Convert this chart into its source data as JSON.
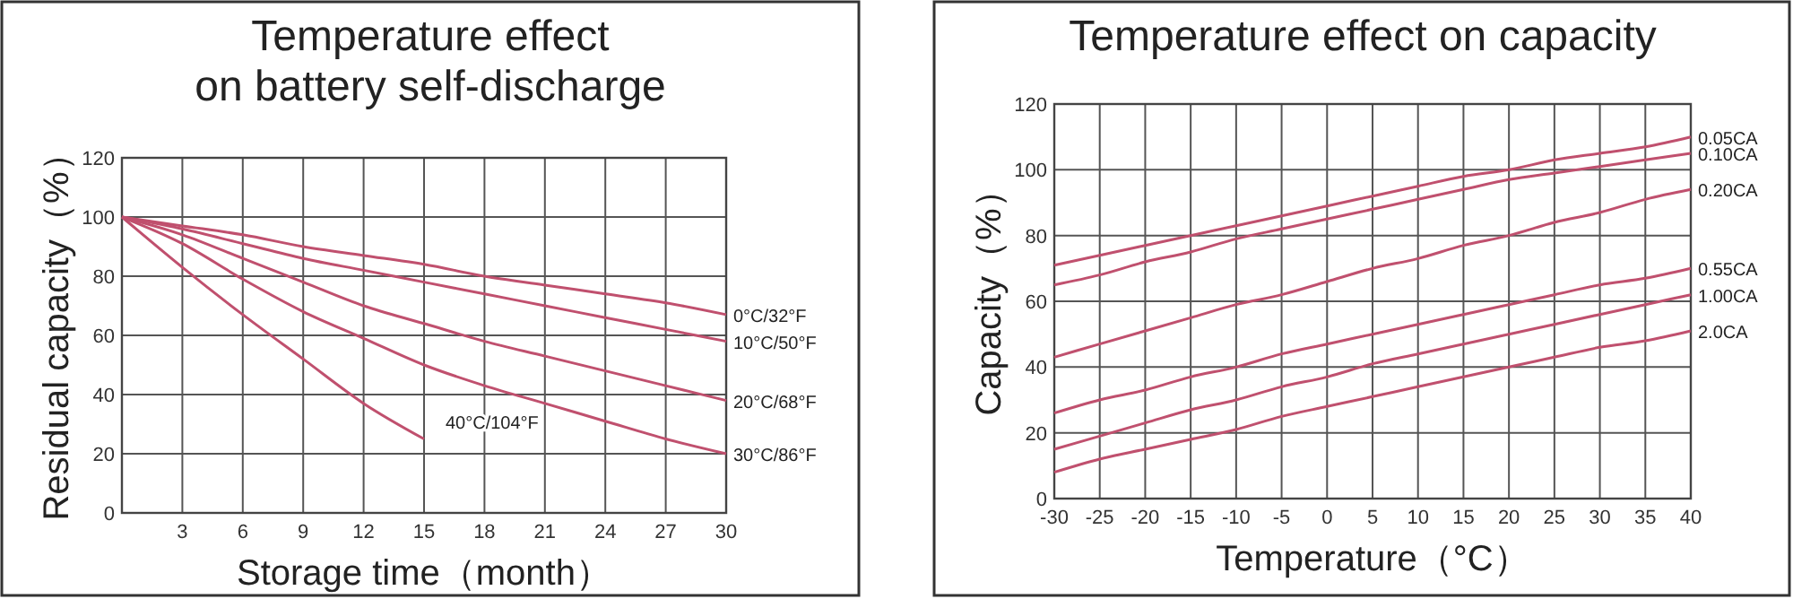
{
  "chart_data": [
    {
      "type": "line",
      "title": "Temperature effect\non battery self-discharge",
      "xlabel": "Storage time（month）",
      "ylabel": "Residual capacity（%）",
      "xlim": [
        0,
        30
      ],
      "xticks": [
        3,
        6,
        9,
        12,
        15,
        18,
        21,
        24,
        27,
        30
      ],
      "ylim": [
        0,
        120
      ],
      "yticks": [
        0,
        20,
        40,
        60,
        80,
        100,
        120
      ],
      "grid": true,
      "marker": "none",
      "line_style": "solid",
      "series": [
        {
          "name": "0°C/32°F",
          "color": "#c0506e",
          "x": [
            0,
            3,
            6,
            9,
            12,
            15,
            18,
            21,
            24,
            27,
            30
          ],
          "values": [
            100,
            97,
            94,
            90,
            87,
            84,
            80,
            77,
            74,
            71,
            67
          ]
        },
        {
          "name": "10°C/50°F",
          "color": "#c0506e",
          "x": [
            0,
            3,
            6,
            9,
            12,
            15,
            18,
            21,
            24,
            27,
            30
          ],
          "values": [
            100,
            96,
            91,
            86,
            82,
            78,
            74,
            70,
            66,
            62,
            58
          ]
        },
        {
          "name": "20°C/68°F",
          "color": "#c0506e",
          "x": [
            0,
            3,
            6,
            9,
            12,
            15,
            18,
            21,
            24,
            27,
            30
          ],
          "values": [
            100,
            94,
            86,
            78,
            70,
            64,
            58,
            53,
            48,
            43,
            38
          ]
        },
        {
          "name": "30°C/86°F",
          "color": "#c0506e",
          "x": [
            0,
            3,
            6,
            9,
            12,
            15,
            18,
            21,
            24,
            27,
            30
          ],
          "values": [
            100,
            91,
            79,
            68,
            59,
            50,
            43,
            37,
            31,
            25,
            20
          ]
        },
        {
          "name": "40°C/104°F",
          "color": "#c0506e",
          "x": [
            0,
            3,
            6,
            9,
            12,
            15
          ],
          "values": [
            100,
            83,
            67,
            52,
            37,
            25
          ]
        }
      ]
    },
    {
      "type": "line",
      "title": "Temperature effect on capacity",
      "xlabel": "Temperature（°C）",
      "ylabel": "Capacity（%）",
      "xlim": [
        -30,
        40
      ],
      "xticks": [
        -30,
        -25,
        -20,
        -15,
        -10,
        -5,
        0,
        5,
        10,
        15,
        20,
        25,
        30,
        35,
        40
      ],
      "ylim": [
        0,
        120
      ],
      "yticks": [
        0,
        20,
        40,
        60,
        80,
        100,
        120
      ],
      "grid": true,
      "marker": "none",
      "line_style": "solid",
      "x": [
        -30,
        -25,
        -20,
        -15,
        -10,
        -5,
        0,
        5,
        10,
        15,
        20,
        25,
        30,
        35,
        40
      ],
      "series": [
        {
          "name": "0.05CA",
          "color": "#c0506e",
          "values": [
            71,
            74,
            77,
            80,
            83,
            86,
            89,
            92,
            95,
            98,
            100,
            103,
            105,
            107,
            110
          ]
        },
        {
          "name": "0.10CA",
          "color": "#c0506e",
          "values": [
            65,
            68,
            72,
            75,
            79,
            82,
            85,
            88,
            91,
            94,
            97,
            99,
            101,
            103,
            105
          ]
        },
        {
          "name": "0.20CA",
          "color": "#c0506e",
          "values": [
            43,
            47,
            51,
            55,
            59,
            62,
            66,
            70,
            73,
            77,
            80,
            84,
            87,
            91,
            94
          ]
        },
        {
          "name": "0.55CA",
          "color": "#c0506e",
          "values": [
            26,
            30,
            33,
            37,
            40,
            44,
            47,
            50,
            53,
            56,
            59,
            62,
            65,
            67,
            70
          ]
        },
        {
          "name": "1.00CA",
          "color": "#c0506e",
          "values": [
            15,
            19,
            23,
            27,
            30,
            34,
            37,
            41,
            44,
            47,
            50,
            53,
            56,
            59,
            62
          ]
        },
        {
          "name": "2.0CA",
          "color": "#c0506e",
          "values": [
            8,
            12,
            15,
            18,
            21,
            25,
            28,
            31,
            34,
            37,
            40,
            43,
            46,
            48,
            51
          ]
        }
      ]
    }
  ]
}
